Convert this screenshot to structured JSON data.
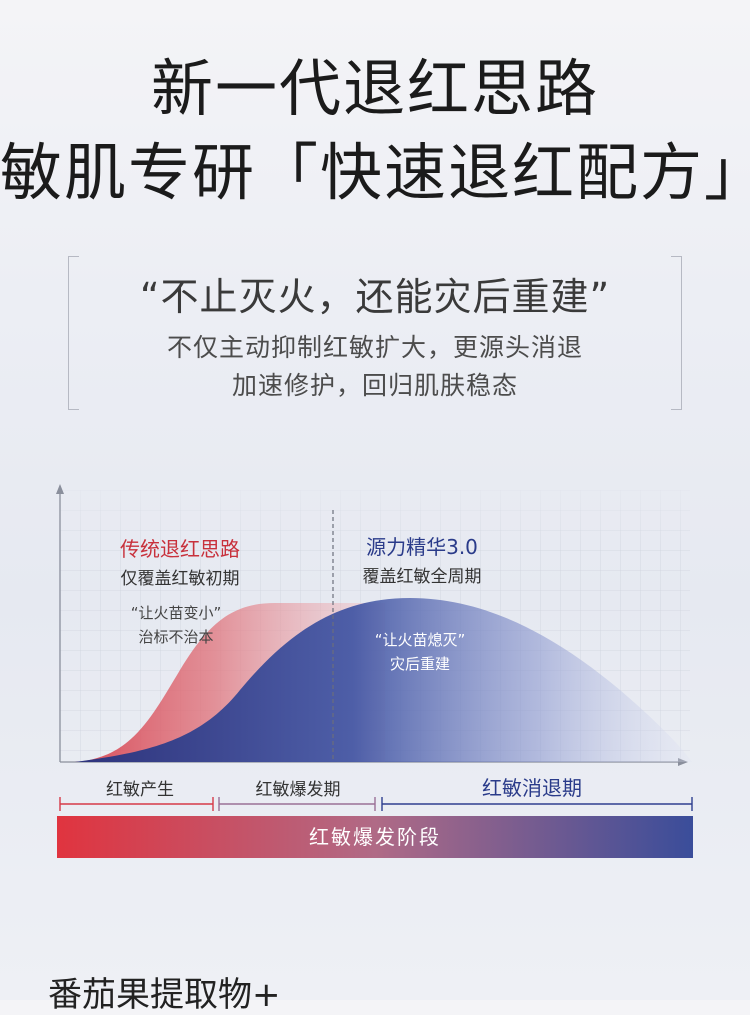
{
  "header": {
    "title_line1": "新一代退红思路",
    "title_line2": "敏肌专研「快速退红配方」"
  },
  "quote": {
    "main": "“不止灭火，还能灾后重建”",
    "sub_line1": "不仅主动抑制红敏扩大，更源头消退",
    "sub_line2": "加速修护，回归肌肤稳态"
  },
  "chart_data": {
    "type": "area",
    "series": [
      {
        "name": "传统退红思路",
        "subtitle": "仅覆盖红敏初期",
        "annotation_line1": "“让火苗变小”",
        "annotation_line2": "治标不治本",
        "color": "#d9454e"
      },
      {
        "name": "源力精华3.0",
        "subtitle": "覆盖红敏全周期",
        "annotation_line1": "“让火苗熄灭”",
        "annotation_line2": "灾后重建",
        "color": "#2f3f8f"
      }
    ],
    "phases": [
      "红敏产生",
      "红敏爆发期",
      "红敏消退期"
    ],
    "bar_label": "红敏爆发阶段",
    "colors": {
      "red": "#e0343f",
      "blue": "#3a4d9a"
    }
  },
  "footer": {
    "partial_text": "番茄果提取物+"
  }
}
